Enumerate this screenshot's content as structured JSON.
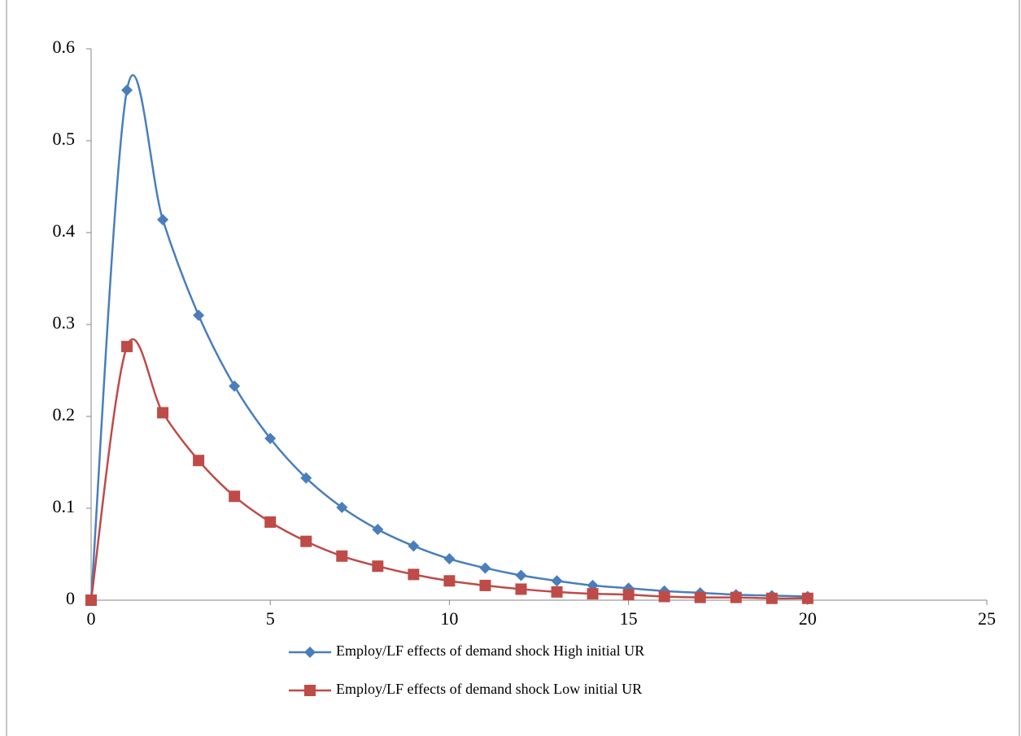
{
  "chart_data": {
    "type": "line",
    "x": [
      0,
      1,
      2,
      3,
      4,
      5,
      6,
      7,
      8,
      9,
      10,
      11,
      12,
      13,
      14,
      15,
      16,
      17,
      18,
      19,
      20
    ],
    "series": [
      {
        "name": "Employ/LF effects of demand shock High initial UR",
        "color": "#4a7ebb",
        "marker": "diamond",
        "values": [
          0,
          0.555,
          0.414,
          0.31,
          0.233,
          0.176,
          0.133,
          0.101,
          0.077,
          0.059,
          0.045,
          0.035,
          0.027,
          0.021,
          0.016,
          0.013,
          0.01,
          0.008,
          0.006,
          0.005,
          0.004
        ]
      },
      {
        "name": "Employ/LF effects of demand shock Low initial UR",
        "color": "#be4b48",
        "marker": "square",
        "values": [
          0,
          0.276,
          0.204,
          0.152,
          0.113,
          0.085,
          0.064,
          0.048,
          0.037,
          0.028,
          0.021,
          0.016,
          0.012,
          0.009,
          0.007,
          0.006,
          0.004,
          0.003,
          0.003,
          0.002,
          0.002
        ]
      }
    ],
    "xlim": [
      0,
      25
    ],
    "xticks": [
      0,
      5,
      10,
      15,
      20,
      25
    ],
    "ylim": [
      0,
      0.6
    ],
    "yticks": [
      0,
      0.1,
      0.2,
      0.3,
      0.4,
      0.5,
      0.6
    ],
    "smooth": true,
    "legend": "bottom"
  }
}
